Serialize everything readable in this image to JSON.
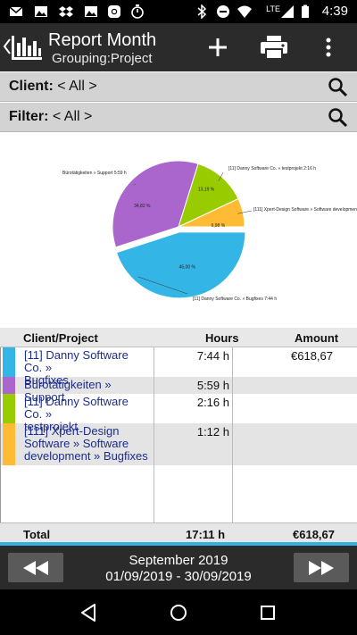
{
  "status_bar": {
    "time": "4:39",
    "network": "LTE",
    "icons": [
      "mail-icon",
      "image-icon",
      "dropbox-icon",
      "image-icon",
      "instagram-icon",
      "stopwatch-icon",
      "bluetooth-icon",
      "dnd-icon",
      "wifi-icon",
      "signal-icon",
      "battery-icon"
    ]
  },
  "app_bar": {
    "title": "Report Month",
    "subtitle": "Grouping:Project",
    "actions": [
      "add-icon",
      "print-icon",
      "overflow-menu-icon"
    ]
  },
  "filters": {
    "client_label": "Client:",
    "client_value": " < All >",
    "filter_label": "Filter:",
    "filter_value": " < All >"
  },
  "chart_data": {
    "type": "pie",
    "slices": [
      {
        "label": "[11] Danny Software Co. » Bugfixes  7:44  h",
        "value": 45.0,
        "value_label": "45,00 %",
        "color": "#33b5e5"
      },
      {
        "label": "Bürotätigkeiten » Support 5:59  h",
        "value": 34.82,
        "value_label": "34,82 %",
        "color": "#aa66cc"
      },
      {
        "label": "[11] Danny Software Co. » testprojekt 2:16  h",
        "value": 13.19,
        "value_label": "13,19 %",
        "color": "#99cc00"
      },
      {
        "label": "[111] Xpert-Design Software » Software development ...",
        "value": 6.98,
        "value_label": "6,98 %",
        "color": "#ffbb33"
      }
    ]
  },
  "table": {
    "headers": {
      "project": "Client/Project",
      "hours": "Hours",
      "amount": "Amount"
    },
    "rows": [
      {
        "project_lines": [
          "[11] Danny Software Co. »",
          "Bugfixes"
        ],
        "hours": "7:44 h",
        "amount": "€618,67",
        "color": "#33b5e5"
      },
      {
        "project_lines": [
          "Bürotätigkeiten » Support"
        ],
        "hours": "5:59 h",
        "amount": "",
        "color": "#aa66cc"
      },
      {
        "project_lines": [
          "[11] Danny Software Co. »",
          "testprojekt"
        ],
        "hours": "2:16 h",
        "amount": "",
        "color": "#99cc00"
      },
      {
        "project_lines": [
          "[111] Xpert-Design",
          "Software » Software",
          "development » Bugfixes"
        ],
        "hours": "1:12 h",
        "amount": "",
        "color": "#ffbb33"
      }
    ],
    "total": {
      "label": "Total",
      "hours": "17:11  h",
      "amount": "€618,67"
    }
  },
  "period": {
    "title": "September 2019",
    "range": "01/09/2019 - 30/09/2019",
    "prev_icon": "rewind-icon",
    "next_icon": "fast-forward-icon"
  },
  "android_nav": [
    "back-icon",
    "home-icon",
    "recents-icon"
  ]
}
